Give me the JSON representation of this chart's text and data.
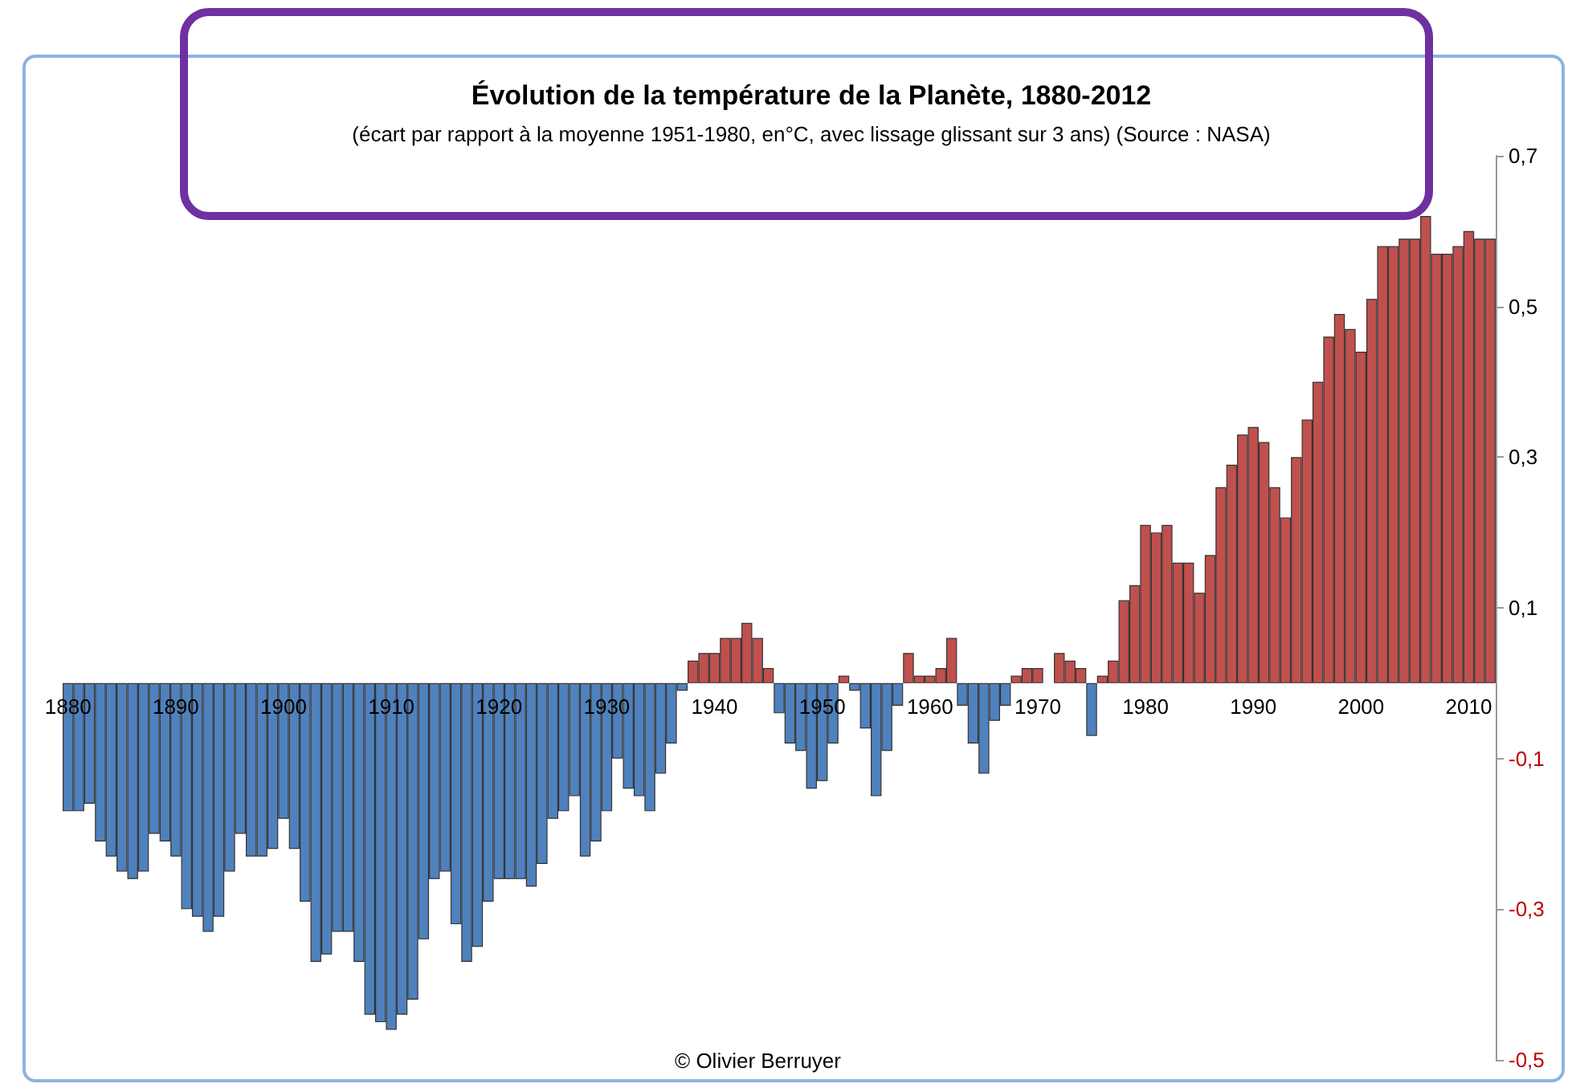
{
  "chart_data": {
    "type": "bar",
    "title": "Évolution de la température de la Planète, 1880-2012",
    "subtitle": "(écart par rapport à la moyenne 1951-1980, en°C, avec lissage glissant sur 3 ans) (Source : NASA)",
    "annotations": [
      "© Olivier Berruyer"
    ],
    "categories": [
      "1880",
      null,
      null,
      null,
      null,
      null,
      null,
      null,
      null,
      null,
      "1890",
      null,
      null,
      null,
      null,
      null,
      null,
      null,
      null,
      null,
      "1900",
      null,
      null,
      null,
      null,
      null,
      null,
      null,
      null,
      null,
      "1910",
      null,
      null,
      null,
      null,
      null,
      null,
      null,
      null,
      null,
      "1920",
      null,
      null,
      null,
      null,
      null,
      null,
      null,
      null,
      null,
      "1930",
      null,
      null,
      null,
      null,
      null,
      null,
      null,
      null,
      null,
      "1940",
      null,
      null,
      null,
      null,
      null,
      null,
      null,
      null,
      null,
      "1950",
      null,
      null,
      null,
      null,
      null,
      null,
      null,
      null,
      null,
      "1960",
      null,
      null,
      null,
      null,
      null,
      null,
      null,
      null,
      null,
      "1970",
      null,
      null,
      null,
      null,
      null,
      null,
      null,
      null,
      null,
      "1980",
      null,
      null,
      null,
      null,
      null,
      null,
      null,
      null,
      null,
      "1990",
      null,
      null,
      null,
      null,
      null,
      null,
      null,
      null,
      null,
      "2000",
      null,
      null,
      null,
      null,
      null,
      null,
      null,
      null,
      null,
      "2010",
      null,
      null
    ],
    "values": [
      -0.17,
      -0.17,
      -0.16,
      -0.21,
      -0.23,
      -0.25,
      -0.26,
      -0.25,
      -0.2,
      -0.21,
      -0.23,
      -0.3,
      -0.31,
      -0.33,
      -0.31,
      -0.25,
      -0.2,
      -0.23,
      -0.23,
      -0.22,
      -0.18,
      -0.22,
      -0.29,
      -0.37,
      -0.36,
      -0.33,
      -0.33,
      -0.37,
      -0.44,
      -0.45,
      -0.46,
      -0.44,
      -0.42,
      -0.34,
      -0.26,
      -0.25,
      -0.32,
      -0.37,
      -0.35,
      -0.29,
      -0.26,
      -0.26,
      -0.26,
      -0.27,
      -0.24,
      -0.18,
      -0.17,
      -0.15,
      -0.23,
      -0.21,
      -0.17,
      -0.1,
      -0.14,
      -0.15,
      -0.17,
      -0.12,
      -0.08,
      -0.01,
      0.03,
      0.04,
      0.04,
      0.06,
      0.06,
      0.08,
      0.06,
      0.02,
      -0.04,
      -0.08,
      -0.09,
      -0.14,
      -0.13,
      -0.08,
      0.01,
      -0.01,
      -0.06,
      -0.15,
      -0.09,
      -0.03,
      0.04,
      0.01,
      0.01,
      0.02,
      0.06,
      -0.03,
      -0.08,
      -0.12,
      -0.05,
      -0.03,
      0.01,
      0.02,
      0.02,
      0,
      0.04,
      0.03,
      0.02,
      -0.07,
      0.01,
      0.03,
      0.11,
      0.13,
      0.21,
      0.2,
      0.21,
      0.16,
      0.16,
      0.12,
      0.17,
      0.26,
      0.29,
      0.33,
      0.34,
      0.32,
      0.26,
      0.22,
      0.3,
      0.35,
      0.4,
      0.46,
      0.49,
      0.47,
      0.44,
      0.51,
      0.58,
      0.58,
      0.59,
      0.59,
      0.62,
      0.57,
      0.57,
      0.58,
      0.6,
      0.59,
      0.59
    ],
    "colors": [
      "#4f81bd",
      "#4f81bd",
      "#4f81bd",
      "#4f81bd",
      "#4f81bd",
      "#4f81bd",
      "#4f81bd",
      "#4f81bd",
      "#4f81bd",
      "#4f81bd",
      "#4f81bd",
      "#4f81bd",
      "#4f81bd",
      "#4f81bd",
      "#4f81bd",
      "#4f81bd",
      "#4f81bd",
      "#4f81bd",
      "#4f81bd",
      "#4f81bd",
      "#4f81bd",
      "#4f81bd",
      "#4f81bd",
      "#4f81bd",
      "#4f81bd",
      "#4f81bd",
      "#4f81bd",
      "#4f81bd",
      "#4f81bd",
      "#4f81bd",
      "#4f81bd",
      "#4f81bd",
      "#4f81bd",
      "#4f81bd",
      "#4f81bd",
      "#4f81bd",
      "#4f81bd",
      "#4f81bd",
      "#4f81bd",
      "#4f81bd",
      "#4f81bd",
      "#4f81bd",
      "#4f81bd",
      "#4f81bd",
      "#4f81bd",
      "#4f81bd",
      "#4f81bd",
      "#4f81bd",
      "#4f81bd",
      "#4f81bd",
      "#4f81bd",
      "#4f81bd",
      "#4f81bd",
      "#4f81bd",
      "#4f81bd",
      "#4f81bd",
      "#4f81bd",
      "#4f81bd",
      "#c0504d",
      "#c0504d",
      "#c0504d",
      "#c0504d",
      "#c0504d",
      "#c0504d",
      "#c0504d",
      "#c0504d",
      "#4f81bd",
      "#4f81bd",
      "#4f81bd",
      "#4f81bd",
      "#4f81bd",
      "#4f81bd",
      "#c0504d",
      "#4f81bd",
      "#4f81bd",
      "#4f81bd",
      "#4f81bd",
      "#4f81bd",
      "#c0504d",
      "#c0504d",
      "#c0504d",
      "#c0504d",
      "#c0504d",
      "#4f81bd",
      "#4f81bd",
      "#4f81bd",
      "#4f81bd",
      "#4f81bd",
      "#c0504d",
      "#c0504d",
      "#c0504d",
      "#c0504d",
      "#c0504d",
      "#c0504d",
      "#c0504d",
      "#4f81bd",
      "#c0504d",
      "#c0504d",
      "#c0504d",
      "#c0504d",
      "#c0504d",
      "#c0504d",
      "#c0504d",
      "#c0504d",
      "#c0504d",
      "#c0504d",
      "#c0504d",
      "#c0504d",
      "#c0504d",
      "#c0504d",
      "#c0504d",
      "#c0504d",
      "#c0504d",
      "#c0504d",
      "#c0504d",
      "#c0504d",
      "#c0504d",
      "#c0504d",
      "#c0504d",
      "#c0504d",
      "#c0504d",
      "#c0504d",
      "#c0504d",
      "#c0504d",
      "#c0504d",
      "#c0504d",
      "#c0504d",
      "#c0504d",
      "#c0504d",
      "#c0504d",
      "#c0504d",
      "#c0504d",
      "#c0504d"
    ],
    "ylim": [
      -0.5,
      0.7
    ],
    "yticks": [
      {
        "value": -0.5,
        "label": "-0,5"
      },
      {
        "value": -0.3,
        "label": "-0,3"
      },
      {
        "value": -0.1,
        "label": "-0,1"
      },
      {
        "value": 0.1,
        "label": "0,1"
      },
      {
        "value": 0.3,
        "label": "0,3"
      },
      {
        "value": 0.5,
        "label": "0,5"
      },
      {
        "value": 0.7,
        "label": "0,7"
      }
    ]
  }
}
